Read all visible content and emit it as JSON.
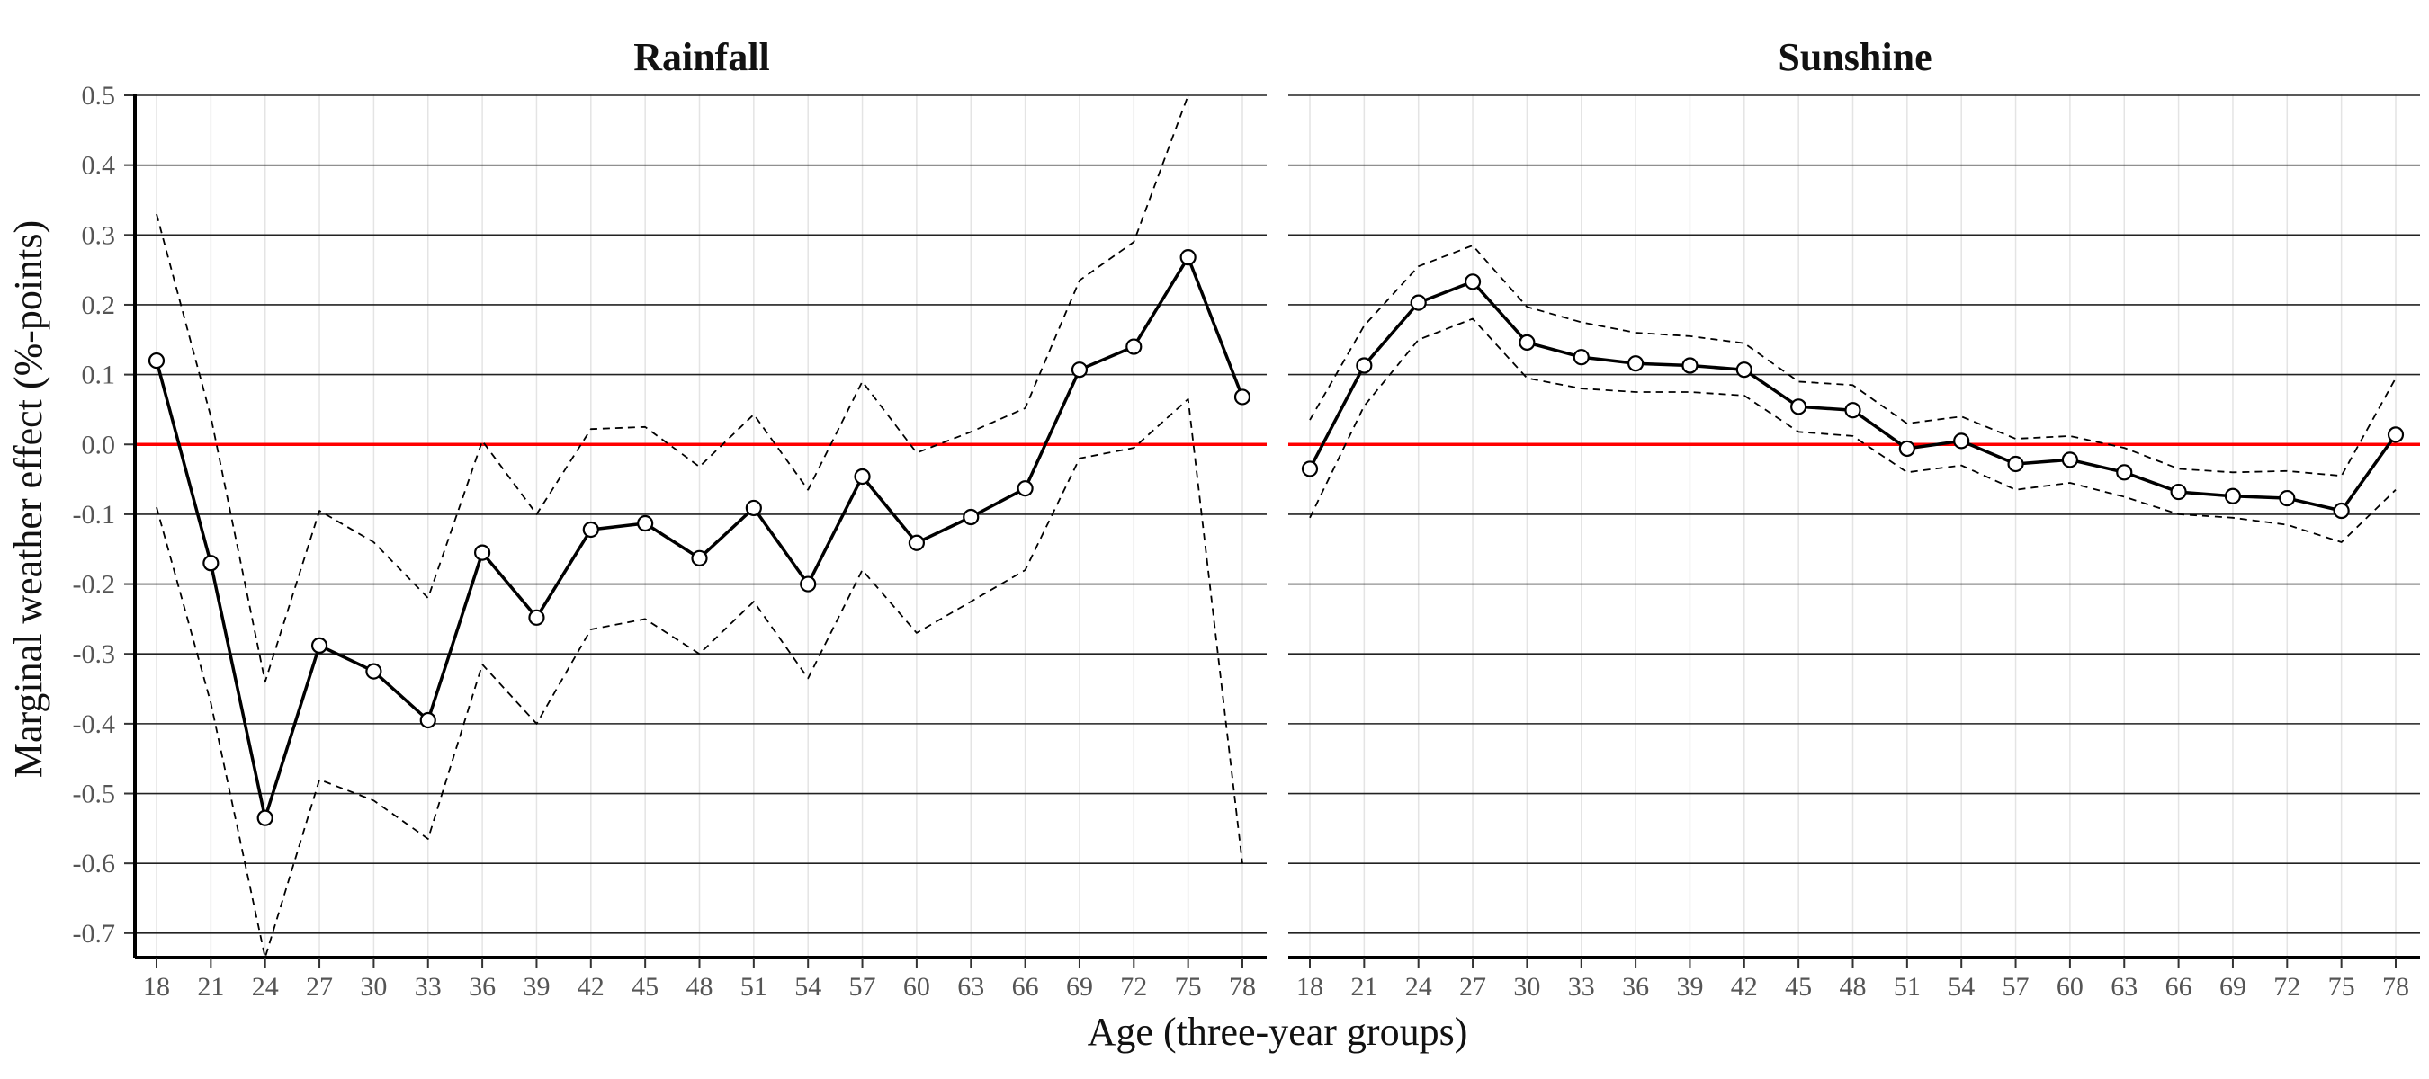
{
  "chart_data": {
    "type": "line",
    "xlabel": "Age (three-year groups)",
    "ylabel": "Marginal weather effect (%-points)",
    "ylim": [
      -0.735,
      0.5
    ],
    "yticks": [
      0.5,
      0.4,
      0.3,
      0.2,
      0.1,
      0.0,
      -0.1,
      -0.2,
      -0.3,
      -0.4,
      -0.5,
      -0.6,
      -0.7
    ],
    "ytick_labels": [
      "0.5",
      "0.4",
      "0.3",
      "0.2",
      "0.1",
      "0.0",
      "-0.1",
      "-0.2",
      "-0.3",
      "-0.4",
      "-0.5",
      "-0.6",
      "-0.7"
    ],
    "categories": [
      "18",
      "21",
      "24",
      "27",
      "30",
      "33",
      "36",
      "39",
      "42",
      "45",
      "48",
      "51",
      "54",
      "57",
      "60",
      "63",
      "66",
      "69",
      "72",
      "75",
      "78"
    ],
    "reference_line": {
      "y": 0.0,
      "color": "#ff0000"
    },
    "grid": true,
    "panels": [
      {
        "title": "Rainfall",
        "series": [
          {
            "role": "estimate",
            "style": "solid-with-markers",
            "values": [
              0.12,
              -0.17,
              -0.535,
              -0.288,
              -0.325,
              -0.395,
              -0.155,
              -0.248,
              -0.122,
              -0.113,
              -0.163,
              -0.091,
              -0.2,
              -0.046,
              -0.141,
              -0.104,
              -0.063,
              0.107,
              0.14,
              0.268,
              0.068
            ]
          },
          {
            "role": "upper-ci",
            "style": "dashed",
            "values": [
              0.33,
              0.04,
              -0.34,
              -0.095,
              -0.14,
              -0.22,
              0.005,
              -0.1,
              0.022,
              0.025,
              -0.032,
              0.043,
              -0.065,
              0.09,
              -0.012,
              0.018,
              0.052,
              0.235,
              0.29,
              0.5,
              null
            ]
          },
          {
            "role": "lower-ci",
            "style": "dashed",
            "values": [
              -0.09,
              -0.37,
              -0.735,
              -0.48,
              -0.51,
              -0.565,
              -0.315,
              -0.4,
              -0.265,
              -0.25,
              -0.3,
              -0.225,
              -0.335,
              -0.18,
              -0.27,
              -0.225,
              -0.18,
              -0.02,
              -0.005,
              0.065,
              -0.6
            ]
          }
        ]
      },
      {
        "title": "Sunshine",
        "series": [
          {
            "role": "estimate",
            "style": "solid-with-markers",
            "values": [
              -0.035,
              0.113,
              0.203,
              0.233,
              0.146,
              0.125,
              0.116,
              0.113,
              0.107,
              0.054,
              0.049,
              -0.006,
              0.005,
              -0.028,
              -0.022,
              -0.04,
              -0.068,
              -0.074,
              -0.077,
              -0.095,
              0.014
            ]
          },
          {
            "role": "upper-ci",
            "style": "dashed",
            "values": [
              0.035,
              0.17,
              0.255,
              0.285,
              0.197,
              0.175,
              0.16,
              0.155,
              0.145,
              0.09,
              0.085,
              0.03,
              0.04,
              0.008,
              0.012,
              -0.005,
              -0.035,
              -0.04,
              -0.038,
              -0.045,
              0.095
            ]
          },
          {
            "role": "lower-ci",
            "style": "dashed",
            "values": [
              -0.105,
              0.055,
              0.15,
              0.18,
              0.095,
              0.08,
              0.075,
              0.075,
              0.07,
              0.018,
              0.012,
              -0.04,
              -0.03,
              -0.065,
              -0.055,
              -0.075,
              -0.1,
              -0.105,
              -0.115,
              -0.14,
              -0.065
            ]
          }
        ]
      }
    ]
  }
}
